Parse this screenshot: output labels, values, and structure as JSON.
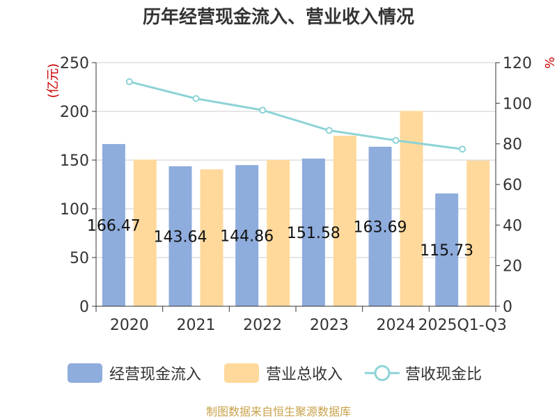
{
  "chart_data": {
    "type": "bar",
    "title": "历年经营现金流入、营业收入情况",
    "categories": [
      "2020",
      "2021",
      "2022",
      "2023",
      "2024",
      "2025Q1-Q3"
    ],
    "series": [
      {
        "name": "经营现金流入",
        "type": "bar",
        "axis": "left",
        "values": [
          166.47,
          143.64,
          144.86,
          151.58,
          163.69,
          115.73
        ],
        "labels": [
          "166.47",
          "143.64",
          "144.86",
          "151.58",
          "163.69",
          "115.73"
        ],
        "color": "#8eacdc"
      },
      {
        "name": "营业总收入",
        "type": "bar",
        "axis": "left",
        "values": [
          150.5,
          140.5,
          150.0,
          175.0,
          200.5,
          149.5
        ],
        "color": "#ffd99b"
      },
      {
        "name": "营收现金比",
        "type": "line",
        "axis": "right",
        "values": [
          110.6,
          102.3,
          96.6,
          86.6,
          81.7,
          77.4
        ],
        "color": "#8dd3d6"
      }
    ],
    "y_left": {
      "label": "(亿元)",
      "ylim": [
        0,
        250
      ],
      "ticks": [
        "0",
        "50",
        "100",
        "150",
        "200",
        "250"
      ]
    },
    "y_right": {
      "label": "%",
      "ylim": [
        0,
        120
      ],
      "ticks": [
        "0",
        "20",
        "40",
        "60",
        "80",
        "100",
        "120"
      ]
    },
    "grid": true,
    "legend": "bottom"
  },
  "footer": {
    "source": "制图数据来自恒生聚源数据库"
  },
  "colors": {
    "axis_label": "#cc0000",
    "source": "#c8a24b",
    "text": "#333333",
    "grid": "#cccccc"
  }
}
